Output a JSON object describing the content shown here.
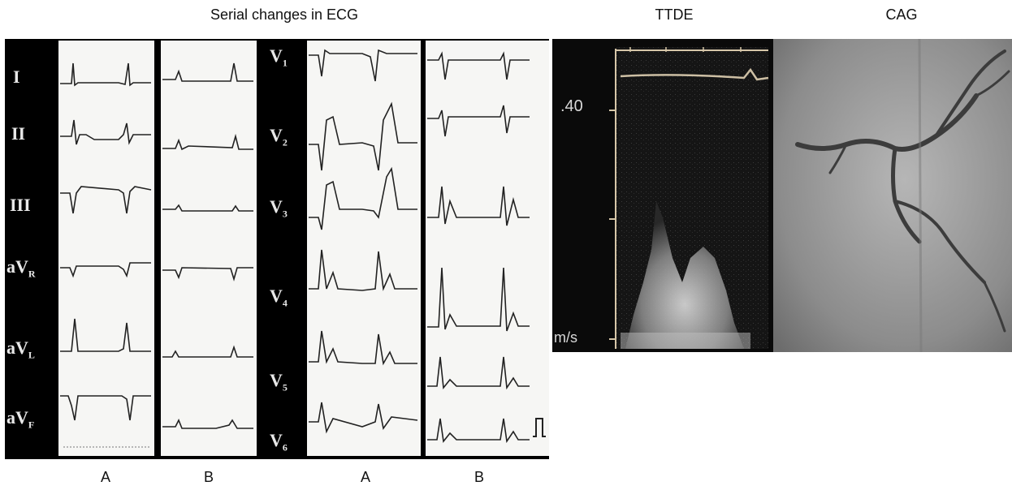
{
  "figure": {
    "title_ecg": "Serial changes in ECG",
    "title_ttde": "TTDE",
    "title_cag": "CAG",
    "column_labels": [
      "A",
      "B",
      "A",
      "B"
    ]
  },
  "ecg": {
    "limb_leads": [
      {
        "name": "I",
        "sub": ""
      },
      {
        "name": "II",
        "sub": ""
      },
      {
        "name": "III",
        "sub": ""
      },
      {
        "name": "aV",
        "sub": "R"
      },
      {
        "name": "aV",
        "sub": "L"
      },
      {
        "name": "aV",
        "sub": "F"
      }
    ],
    "chest_leads": [
      {
        "name": "V",
        "sub": "1"
      },
      {
        "name": "V",
        "sub": "2"
      },
      {
        "name": "V",
        "sub": "3"
      },
      {
        "name": "V",
        "sub": "4"
      },
      {
        "name": "V",
        "sub": "5"
      },
      {
        "name": "V",
        "sub": "6"
      }
    ]
  },
  "ttde": {
    "velocity_tick": ".40",
    "unit": "m/s"
  }
}
